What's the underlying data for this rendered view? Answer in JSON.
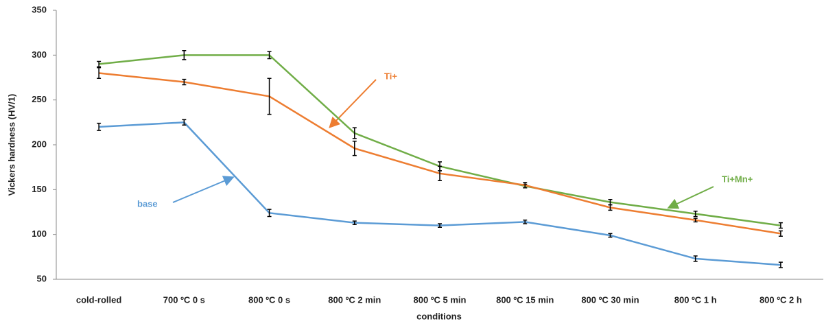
{
  "chart_data": {
    "type": "line",
    "x_label": "conditions",
    "y_label": "Vickers hardness (HV/1)",
    "categories": [
      "cold-rolled",
      "700 ºC 0 s",
      "800 ºC 0 s",
      "800 ºC 2 min",
      "800 ºC 5 min",
      "800 ºC 15 min",
      "800 ºC 30 min",
      "800 ºC 1 h",
      "800 ºC 2 h"
    ],
    "series": [
      {
        "name": "Ti+Mn+",
        "color": "#70ad47",
        "values": [
          290,
          300,
          300,
          213,
          176,
          154,
          136,
          123,
          110
        ],
        "errors": [
          3,
          5,
          4,
          6,
          5,
          2,
          3,
          3,
          3
        ]
      },
      {
        "name": "Ti+",
        "color": "#ed7d31",
        "values": [
          280,
          270,
          254,
          196,
          168,
          155,
          130,
          116,
          101
        ],
        "errors": [
          6,
          3,
          20,
          8,
          8,
          3,
          3,
          2,
          3
        ]
      },
      {
        "name": "base",
        "color": "#5b9bd5",
        "values": [
          220,
          225,
          124,
          113,
          110,
          114,
          99,
          73,
          66
        ],
        "errors": [
          4,
          3,
          4,
          2,
          2,
          2,
          2,
          3,
          3
        ]
      }
    ],
    "error_bar_color": "#000000",
    "ylim": [
      50,
      350
    ],
    "yticks": [
      50,
      100,
      150,
      200,
      250,
      300,
      350
    ],
    "grid": false
  }
}
